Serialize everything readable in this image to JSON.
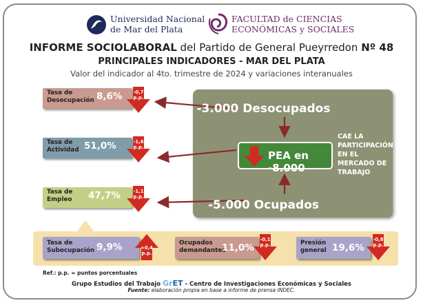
{
  "logos": {
    "unmdp_line1": "Universidad Nacional",
    "unmdp_line2": "de Mar del Plata",
    "face_line1": "FACULTAD de CIENCIAS",
    "face_line2": "ECONÓMICAS y SOCIALES"
  },
  "header": {
    "title_bold": "INFORME SOCIOLABORAL",
    "title_rest": " del Partido de General Pueyrredon ",
    "title_num": "Nº 48",
    "subtitle": "PRINCIPALES INDICADORES - MAR DEL PLATA",
    "subtitle2": "Valor del indicador al 4to. trimestre de 2024 y variaciones interanuales"
  },
  "indicators": {
    "desocupacion": {
      "label1": "Tasa de",
      "label2": "Desocupación",
      "value": "8,6%",
      "change1": "-0,7",
      "change2": "p.p."
    },
    "actividad": {
      "label1": "Tasa de",
      "label2": "Actividad",
      "value": "51,0%",
      "change1": "-1,6",
      "change2": "p.p."
    },
    "empleo": {
      "label1": "Tasa de",
      "label2": "Empleo",
      "value": "47,7%",
      "change1": "-1,1",
      "change2": "p.p."
    },
    "subocupacion": {
      "label1": "Tasa de",
      "label2": "Subocupación",
      "value": "9,9%",
      "change1": "+0,4",
      "change2": "p.p."
    },
    "demandantes": {
      "label1": "Ocupados",
      "label2": "demandantes",
      "value": "11,0%",
      "change1": "-0,1",
      "change2": "p.p."
    },
    "presion": {
      "label1": "Presión",
      "label2": "general",
      "value": "19,6%",
      "change1": "-0,8",
      "change2": "p.p."
    }
  },
  "pea": {
    "desocupados": "-3.000 Desocupados",
    "center": "PEA en -8.000",
    "ocupados": "-5.000 Ocupados",
    "cae_lines": [
      "CAE LA",
      "PARTICIPACIÓN",
      "EN EL",
      "MERCADO DE",
      "TRABAJO"
    ]
  },
  "footer": {
    "ref": "Ref.: p.p. = puntos porcentuales",
    "group_pre": "Grupo Estudios del Trabajo ",
    "gret_a": "Gr",
    "gret_b": "ET",
    "group_post": " - Centro de Investigaciones Económicas y Sociales",
    "fuente_label": "Fuente:",
    "fuente_text": " elaboración propia en base a informe de prensa INDEC."
  },
  "colors": {
    "desocupacion": "#c99a8f",
    "actividad": "#7f9caa",
    "empleo": "#c3cf86",
    "subocupacion": "#a9a3c9",
    "demandantes": "#c99a8f",
    "presion": "#a9a3c9",
    "arrow_red": "#d12a20",
    "pea_box": "#8e9274",
    "pea_center": "#44883a"
  }
}
